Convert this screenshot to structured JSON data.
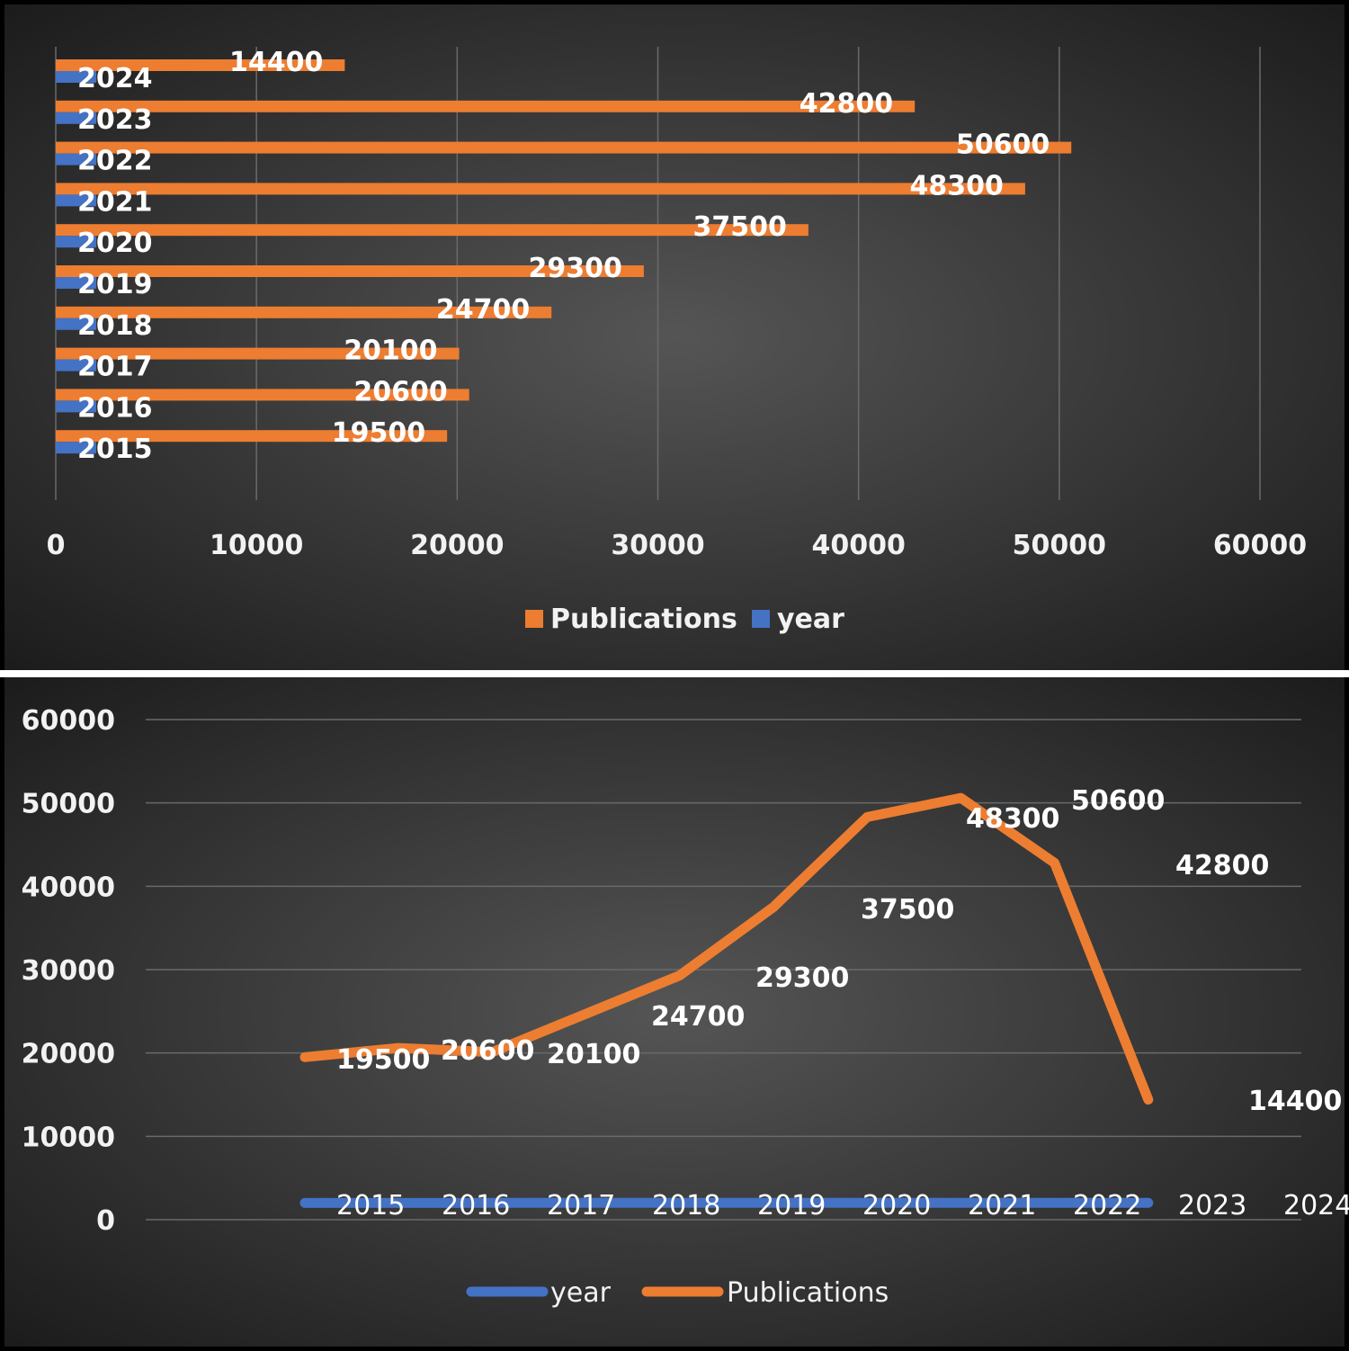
{
  "colors": {
    "publications": "#ED7D31",
    "year": "#4472C4",
    "text": "#ffffff",
    "axis_text": "#f2f2f2",
    "grid": "#6a6a6a",
    "background_light": "#5a5a5a",
    "background_dark": "#1a1a1a",
    "divider": "#ffffff"
  },
  "chart_data": [
    {
      "type": "bar",
      "orientation": "horizontal",
      "categories": [
        "2015",
        "2016",
        "2017",
        "2018",
        "2019",
        "2020",
        "2021",
        "2022",
        "2023",
        "2024"
      ],
      "series": [
        {
          "name": "year",
          "values": [
            2015,
            2016,
            2017,
            2018,
            2019,
            2020,
            2021,
            2022,
            2023,
            2024
          ]
        },
        {
          "name": "Publications",
          "values": [
            19500,
            20600,
            20100,
            24700,
            29300,
            37500,
            48300,
            50600,
            42800,
            14400
          ]
        }
      ],
      "data_labels": [
        "19500",
        "20600",
        "20100",
        "24700",
        "29300",
        "37500",
        "48300",
        "50600",
        "42800",
        "14400"
      ],
      "xlim": [
        0,
        60000
      ],
      "x_ticks": [
        "0",
        "10000",
        "20000",
        "30000",
        "40000",
        "50000",
        "60000"
      ],
      "legend": [
        "Publications",
        "year"
      ],
      "legend_position": "bottom",
      "grid": true
    },
    {
      "type": "line",
      "categories": [
        "2015",
        "2016",
        "2017",
        "2018",
        "2019",
        "2020",
        "2021",
        "2022",
        "2023",
        "2024"
      ],
      "series": [
        {
          "name": "year",
          "values": [
            2015,
            2016,
            2017,
            2018,
            2019,
            2020,
            2021,
            2022,
            2023,
            2024
          ]
        },
        {
          "name": "Publications",
          "values": [
            19500,
            20600,
            20100,
            24700,
            29300,
            37500,
            48300,
            50600,
            42800,
            14400
          ]
        }
      ],
      "year_labels": [
        "2015",
        "2016",
        "2017",
        "2018",
        "2019",
        "2020",
        "2021",
        "2022",
        "2023",
        "2024"
      ],
      "data_labels": [
        "19500",
        "20600",
        "20100",
        "24700",
        "29300",
        "37500",
        "48300",
        "50600",
        "42800",
        "14400"
      ],
      "ylim": [
        0,
        60000
      ],
      "y_ticks": [
        "0",
        "10000",
        "20000",
        "30000",
        "40000",
        "50000",
        "60000"
      ],
      "legend": [
        "year",
        "Publications"
      ],
      "legend_position": "bottom",
      "grid": true
    }
  ]
}
